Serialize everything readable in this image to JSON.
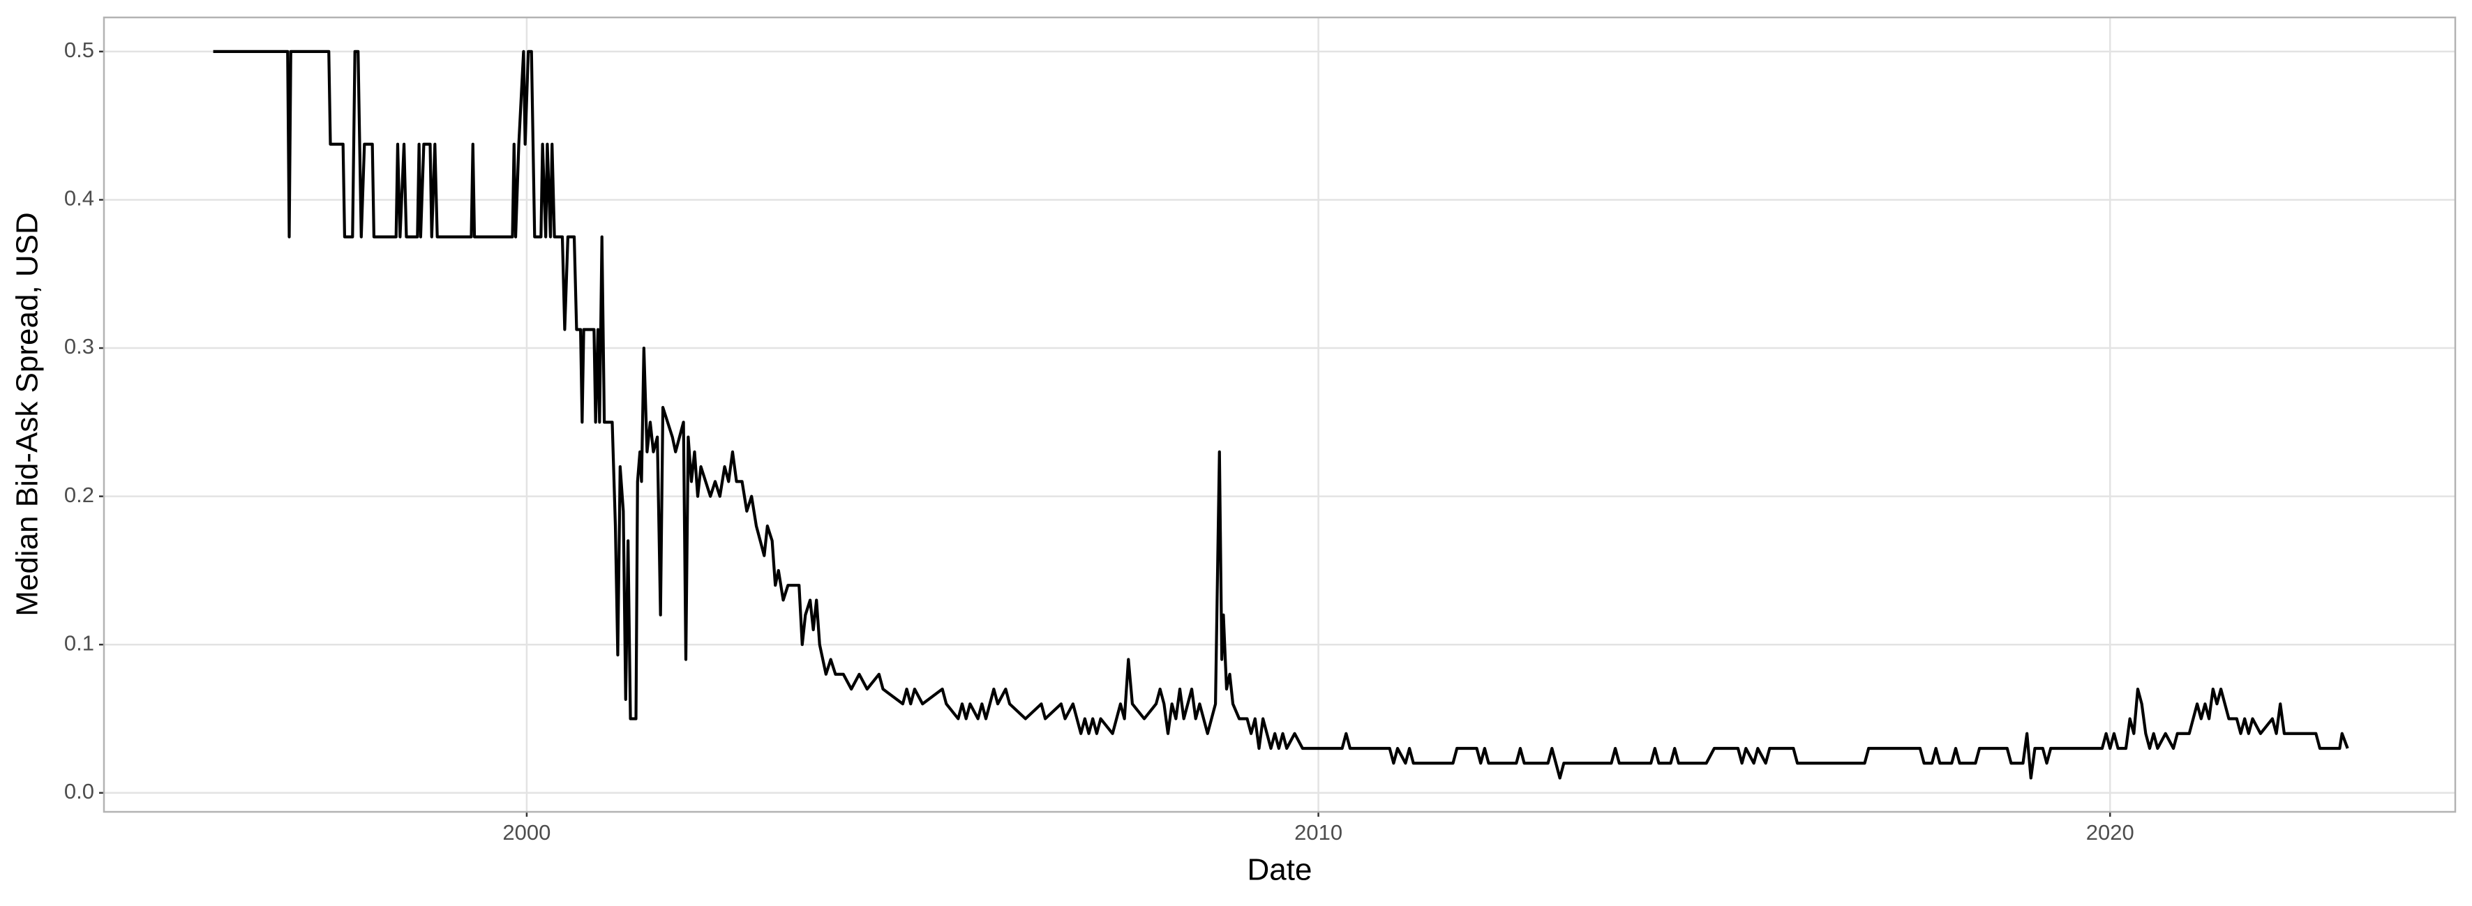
{
  "chart_data": {
    "type": "line",
    "x_label": "Date",
    "y_label": "Median Bid-Ask Spread, USD",
    "color": "#000000",
    "grid": true,
    "xlim": [
      1994.66,
      2024.36
    ],
    "xticks": [
      2000,
      2010,
      2020
    ],
    "ylim": [
      -0.0128,
      0.523
    ],
    "yticks": [
      {
        "value": 0,
        "label": "0.0"
      },
      0.1,
      0.2,
      0.3,
      0.4,
      0.5
    ],
    "x": [
      1996.04,
      1996.98,
      1997.0,
      1997.02,
      1997.5,
      1997.52,
      1997.68,
      1997.7,
      1997.8,
      1997.83,
      1997.87,
      1997.91,
      1997.95,
      1998.05,
      1998.07,
      1998.35,
      1998.37,
      1998.4,
      1998.45,
      1998.48,
      1998.62,
      1998.64,
      1998.66,
      1998.7,
      1998.78,
      1998.8,
      1998.84,
      1998.87,
      1999.3,
      1999.32,
      1999.34,
      1999.82,
      1999.84,
      1999.86,
      1999.9,
      1999.96,
      1999.98,
      2000.02,
      2000.06,
      2000.1,
      2000.18,
      2000.2,
      2000.24,
      2000.26,
      2000.3,
      2000.32,
      2000.35,
      2000.45,
      2000.48,
      2000.52,
      2000.6,
      2000.63,
      2000.68,
      2000.7,
      2000.72,
      2000.85,
      2000.87,
      2000.9,
      2000.92,
      2000.95,
      2000.98,
      2001.08,
      2001.12,
      2001.15,
      2001.18,
      2001.22,
      2001.25,
      2001.28,
      2001.31,
      2001.38,
      2001.4,
      2001.43,
      2001.45,
      2001.48,
      2001.52,
      2001.56,
      2001.6,
      2001.65,
      2001.69,
      2001.72,
      2001.78,
      2001.84,
      2001.88,
      2001.93,
      2001.98,
      2002.01,
      2002.04,
      2002.08,
      2002.12,
      2002.16,
      2002.2,
      2002.26,
      2002.32,
      2002.38,
      2002.44,
      2002.5,
      2002.55,
      2002.6,
      2002.65,
      2002.72,
      2002.78,
      2002.84,
      2002.9,
      2002.95,
      2003.0,
      2003.04,
      2003.1,
      2003.14,
      2003.18,
      2003.24,
      2003.3,
      2003.44,
      2003.48,
      2003.52,
      2003.58,
      2003.62,
      2003.66,
      2003.7,
      2003.74,
      2003.78,
      2003.84,
      2003.9,
      2004.0,
      2004.1,
      2004.2,
      2004.3,
      2004.45,
      2004.5,
      2004.75,
      2004.8,
      2004.85,
      2004.9,
      2005.0,
      2005.25,
      2005.3,
      2005.45,
      2005.5,
      2005.55,
      2005.6,
      2005.7,
      2005.75,
      2005.8,
      2005.85,
      2005.9,
      2005.95,
      2006.05,
      2006.1,
      2006.3,
      2006.5,
      2006.55,
      2006.75,
      2006.8,
      2006.9,
      2006.95,
      2007.0,
      2007.05,
      2007.1,
      2007.15,
      2007.2,
      2007.25,
      2007.4,
      2007.45,
      2007.5,
      2007.55,
      2007.6,
      2007.65,
      2007.8,
      2007.95,
      2008.0,
      2008.05,
      2008.1,
      2008.15,
      2008.2,
      2008.25,
      2008.3,
      2008.35,
      2008.4,
      2008.45,
      2008.5,
      2008.55,
      2008.6,
      2008.65,
      2008.7,
      2008.75,
      2008.78,
      2008.8,
      2008.84,
      2008.88,
      2008.92,
      2009.0,
      2009.1,
      2009.15,
      2009.2,
      2009.25,
      2009.3,
      2009.35,
      2009.4,
      2009.45,
      2009.5,
      2009.55,
      2009.6,
      2009.7,
      2009.8,
      2010.3,
      2010.35,
      2010.4,
      2010.9,
      2010.95,
      2011.0,
      2011.1,
      2011.15,
      2011.2,
      2011.7,
      2011.75,
      2012.0,
      2012.05,
      2012.1,
      2012.15,
      2012.5,
      2012.55,
      2012.6,
      2012.9,
      2012.95,
      2013.0,
      2013.05,
      2013.1,
      2013.7,
      2013.75,
      2013.8,
      2014.2,
      2014.25,
      2014.3,
      2014.45,
      2014.5,
      2014.55,
      2014.9,
      2015.0,
      2015.3,
      2015.35,
      2015.4,
      2015.5,
      2015.55,
      2015.65,
      2015.7,
      2016.0,
      2016.05,
      2016.9,
      2016.95,
      2017.6,
      2017.65,
      2017.75,
      2017.8,
      2017.85,
      2018.0,
      2018.05,
      2018.1,
      2018.3,
      2018.35,
      2018.7,
      2018.75,
      2018.9,
      2018.95,
      2019.0,
      2019.05,
      2019.15,
      2019.2,
      2019.25,
      2019.9,
      2019.95,
      2020.0,
      2020.05,
      2020.1,
      2020.2,
      2020.25,
      2020.3,
      2020.35,
      2020.4,
      2020.45,
      2020.5,
      2020.55,
      2020.6,
      2020.7,
      2020.8,
      2020.85,
      2021.0,
      2021.05,
      2021.1,
      2021.15,
      2021.2,
      2021.25,
      2021.3,
      2021.35,
      2021.4,
      2021.45,
      2021.5,
      2021.6,
      2021.65,
      2021.7,
      2021.75,
      2021.8,
      2021.9,
      2022.05,
      2022.1,
      2022.15,
      2022.2,
      2022.6,
      2022.65,
      2022.9,
      2022.93,
      2023.0
    ],
    "values": [
      0.5,
      0.5,
      0.375,
      0.5,
      0.5,
      0.4375,
      0.4375,
      0.375,
      0.375,
      0.5,
      0.5,
      0.375,
      0.4375,
      0.4375,
      0.375,
      0.375,
      0.4375,
      0.375,
      0.4375,
      0.375,
      0.375,
      0.4375,
      0.375,
      0.4375,
      0.4375,
      0.375,
      0.4375,
      0.375,
      0.375,
      0.4375,
      0.375,
      0.375,
      0.4375,
      0.375,
      0.4375,
      0.5,
      0.4375,
      0.5,
      0.5,
      0.375,
      0.375,
      0.4375,
      0.375,
      0.4375,
      0.375,
      0.4375,
      0.375,
      0.375,
      0.3125,
      0.375,
      0.375,
      0.3125,
      0.3125,
      0.25,
      0.3125,
      0.3125,
      0.25,
      0.3125,
      0.25,
      0.375,
      0.25,
      0.25,
      0.18,
      0.093,
      0.22,
      0.19,
      0.063,
      0.17,
      0.05,
      0.05,
      0.21,
      0.23,
      0.21,
      0.3,
      0.23,
      0.25,
      0.23,
      0.24,
      0.12,
      0.26,
      0.25,
      0.24,
      0.23,
      0.24,
      0.25,
      0.09,
      0.24,
      0.21,
      0.23,
      0.2,
      0.22,
      0.21,
      0.2,
      0.21,
      0.2,
      0.22,
      0.21,
      0.23,
      0.21,
      0.21,
      0.19,
      0.2,
      0.18,
      0.17,
      0.16,
      0.18,
      0.17,
      0.14,
      0.15,
      0.13,
      0.14,
      0.14,
      0.1,
      0.12,
      0.13,
      0.11,
      0.13,
      0.1,
      0.09,
      0.08,
      0.09,
      0.08,
      0.08,
      0.07,
      0.08,
      0.07,
      0.08,
      0.07,
      0.06,
      0.07,
      0.06,
      0.07,
      0.06,
      0.07,
      0.06,
      0.05,
      0.06,
      0.05,
      0.06,
      0.05,
      0.06,
      0.05,
      0.06,
      0.07,
      0.06,
      0.07,
      0.06,
      0.05,
      0.06,
      0.05,
      0.06,
      0.05,
      0.06,
      0.05,
      0.04,
      0.05,
      0.04,
      0.05,
      0.04,
      0.05,
      0.04,
      0.05,
      0.06,
      0.05,
      0.09,
      0.06,
      0.05,
      0.06,
      0.07,
      0.06,
      0.04,
      0.06,
      0.05,
      0.07,
      0.05,
      0.06,
      0.07,
      0.05,
      0.06,
      0.05,
      0.04,
      0.05,
      0.06,
      0.23,
      0.09,
      0.12,
      0.07,
      0.08,
      0.06,
      0.05,
      0.05,
      0.04,
      0.05,
      0.03,
      0.05,
      0.04,
      0.03,
      0.04,
      0.03,
      0.04,
      0.03,
      0.04,
      0.03,
      0.03,
      0.04,
      0.03,
      0.03,
      0.02,
      0.03,
      0.02,
      0.03,
      0.02,
      0.02,
      0.03,
      0.03,
      0.02,
      0.03,
      0.02,
      0.02,
      0.03,
      0.02,
      0.02,
      0.03,
      0.02,
      0.01,
      0.02,
      0.02,
      0.03,
      0.02,
      0.02,
      0.03,
      0.02,
      0.02,
      0.03,
      0.02,
      0.02,
      0.03,
      0.03,
      0.02,
      0.03,
      0.02,
      0.03,
      0.02,
      0.03,
      0.03,
      0.02,
      0.02,
      0.03,
      0.03,
      0.02,
      0.02,
      0.03,
      0.02,
      0.02,
      0.03,
      0.02,
      0.02,
      0.03,
      0.03,
      0.02,
      0.02,
      0.04,
      0.01,
      0.03,
      0.03,
      0.02,
      0.03,
      0.03,
      0.04,
      0.03,
      0.04,
      0.03,
      0.03,
      0.05,
      0.04,
      0.07,
      0.06,
      0.04,
      0.03,
      0.04,
      0.03,
      0.04,
      0.03,
      0.04,
      0.04,
      0.05,
      0.06,
      0.05,
      0.06,
      0.05,
      0.07,
      0.06,
      0.07,
      0.06,
      0.05,
      0.05,
      0.04,
      0.05,
      0.04,
      0.05,
      0.04,
      0.05,
      0.04,
      0.06,
      0.04,
      0.04,
      0.03,
      0.03,
      0.04,
      0.03
    ]
  }
}
